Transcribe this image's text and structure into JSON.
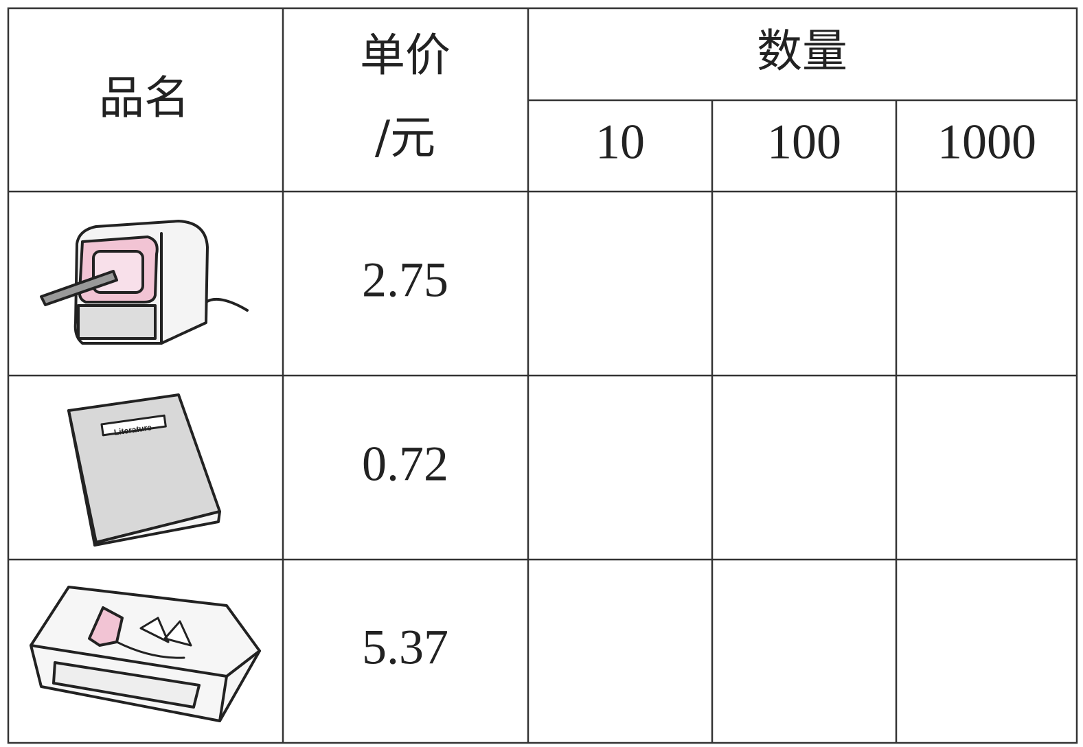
{
  "table": {
    "header": {
      "name": "品名",
      "price": [
        "单价",
        "/元"
      ],
      "quantity": "数量",
      "quantities": [
        10,
        100,
        1000
      ]
    },
    "rows": [
      {
        "price": 2.75
      },
      {
        "price": 0.72,
        "cover_text": "Literature"
      },
      {
        "price": 5.37
      }
    ]
  }
}
